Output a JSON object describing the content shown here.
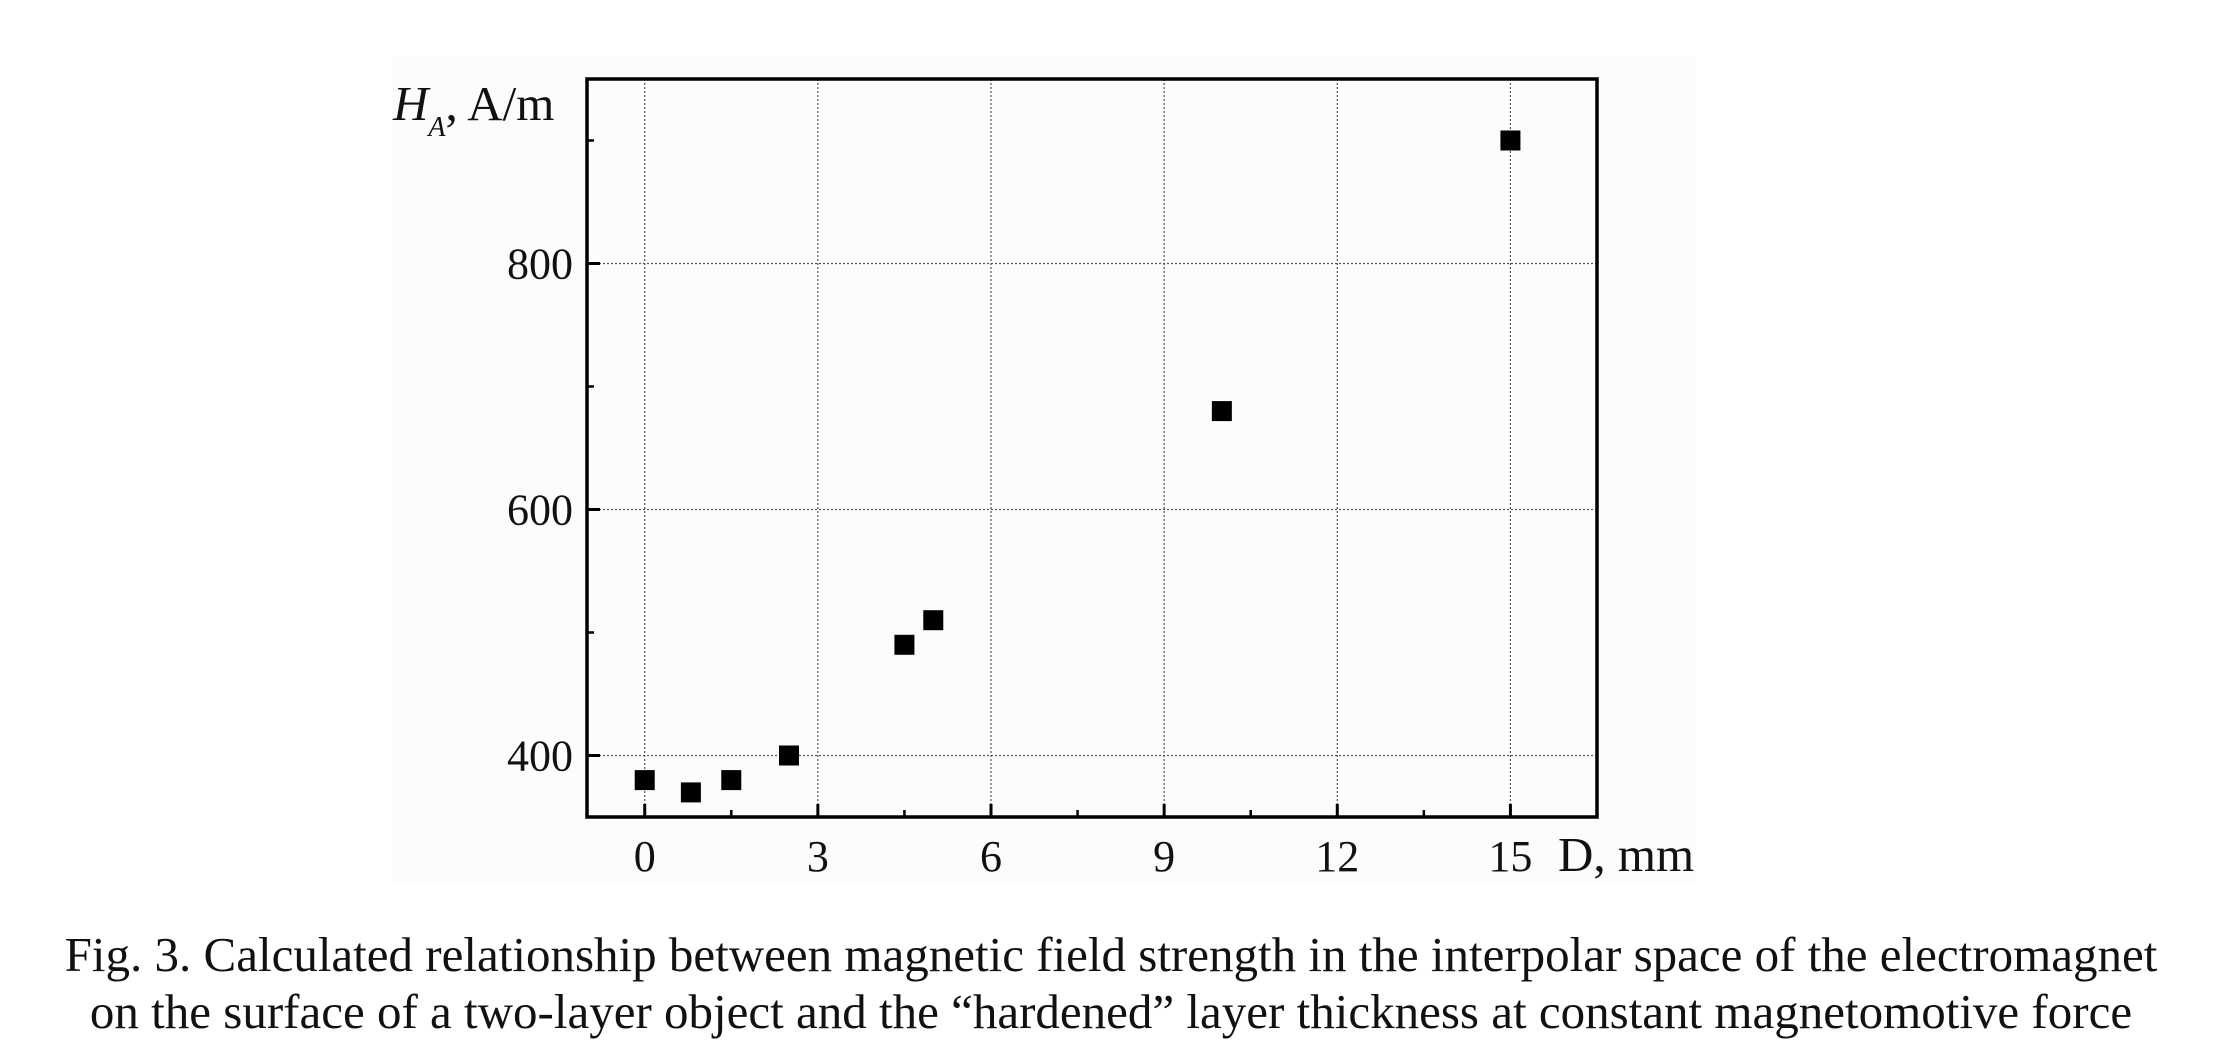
{
  "chart_data": {
    "type": "scatter",
    "ylabel_symbol": "H",
    "ylabel_subscript": "A",
    "ylabel_unit": ", A/m",
    "xlabel": "D, mm",
    "xlim": [
      -1,
      16.5
    ],
    "ylim": [
      350,
      950
    ],
    "xticks": [
      0,
      3,
      6,
      9,
      12,
      15
    ],
    "yticks": [
      400,
      600,
      800
    ],
    "x_minor_step": 1.5,
    "y_minor_step": 100,
    "grid": true,
    "marker": "square",
    "marker_color": "#000000",
    "series": [
      {
        "x": [
          0,
          0.8,
          1.5,
          2.5,
          4.5,
          5,
          10,
          15
        ],
        "y": [
          380,
          370,
          380,
          400,
          490,
          510,
          680,
          900
        ]
      }
    ]
  },
  "caption": {
    "line1": "Fig. 3. Calculated relationship between magnetic field strength in the interpolar space of the electromagnet",
    "line2": "on the surface of a two-layer object and the “hardened” layer thickness at constant magnetomotive force"
  }
}
